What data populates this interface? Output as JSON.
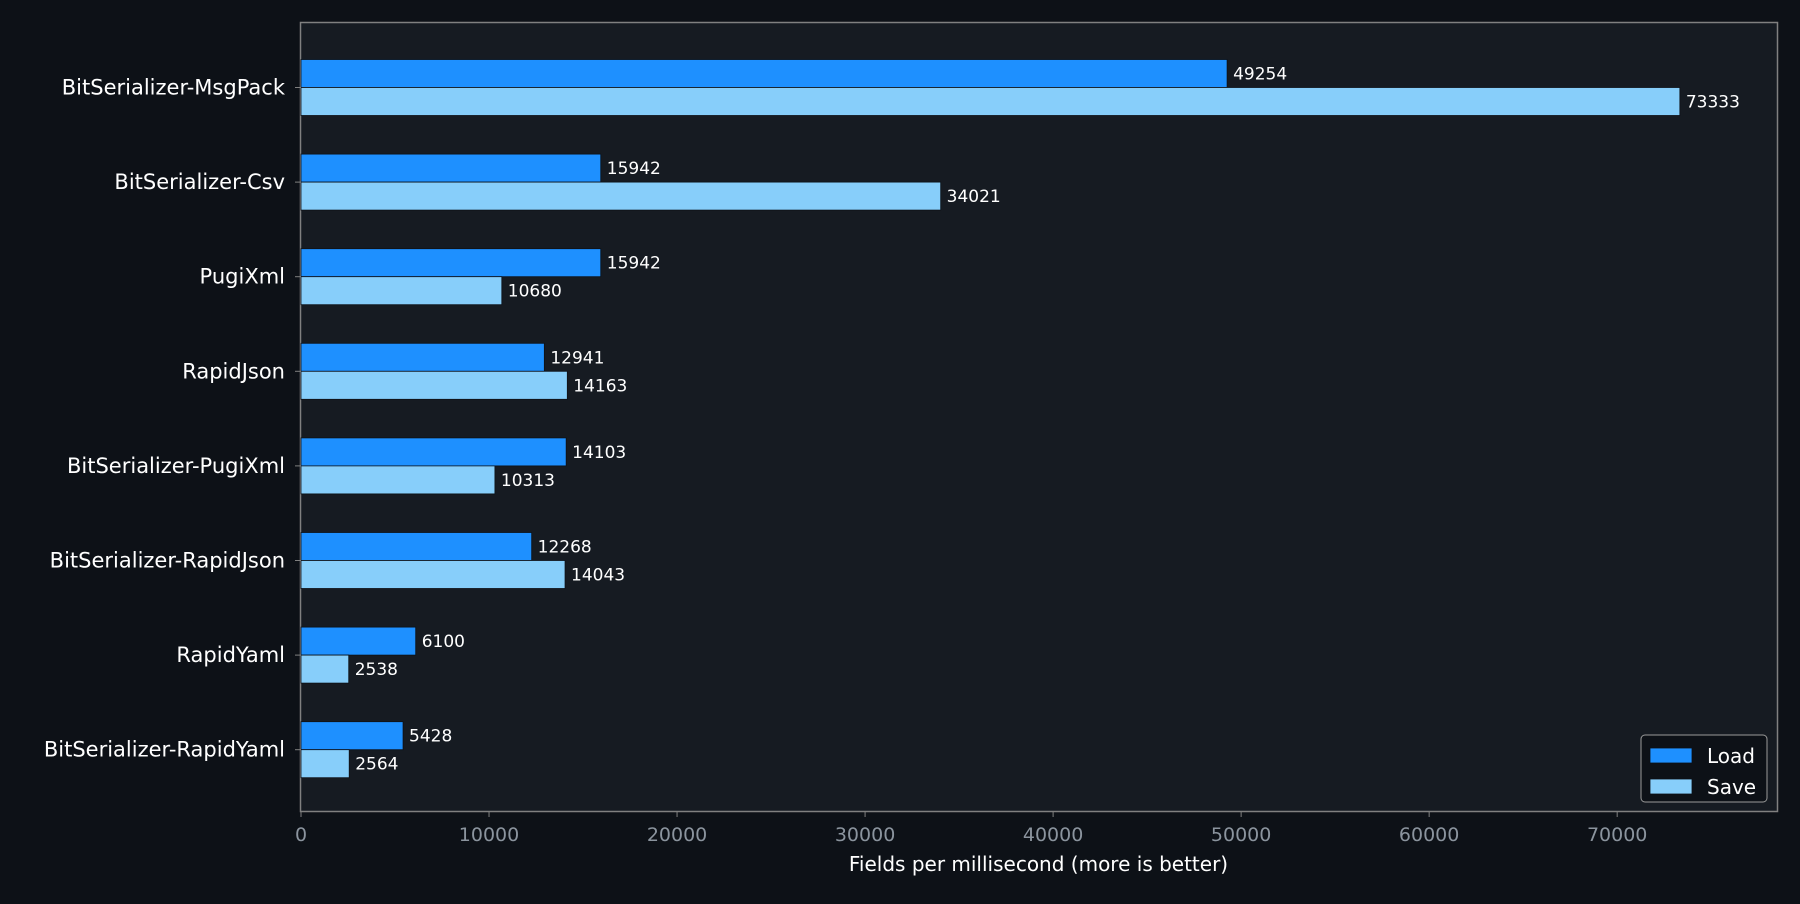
{
  "chart_data": {
    "type": "bar",
    "orientation": "horizontal",
    "categories": [
      "BitSerializer-MsgPack",
      "BitSerializer-Csv",
      "PugiXml",
      "RapidJson",
      "BitSerializer-PugiXml",
      "BitSerializer-RapidJson",
      "RapidYaml",
      "BitSerializer-RapidYaml"
    ],
    "series": [
      {
        "name": "Load",
        "color": "#1e90ff",
        "values": [
          49254,
          15942,
          15942,
          12941,
          14103,
          12268,
          6100,
          5428
        ]
      },
      {
        "name": "Save",
        "color": "#87cefa",
        "values": [
          73333,
          34021,
          10680,
          14163,
          10313,
          14043,
          2538,
          2564
        ]
      }
    ],
    "title": "",
    "xlabel": "Fields per millisecond (more is better)",
    "ylabel": "",
    "xlim": [
      0,
      78500
    ],
    "xticks": [
      0,
      10000,
      20000,
      30000,
      40000,
      50000,
      60000,
      70000
    ],
    "grid": false,
    "legend_position": "bottom-right",
    "data_labels": true
  },
  "colors": {
    "page_background": "#0d1117",
    "plot_background": "#161b22",
    "axis_line": "#808080",
    "tick_label": "#8b949e",
    "text": "#ffffff"
  }
}
